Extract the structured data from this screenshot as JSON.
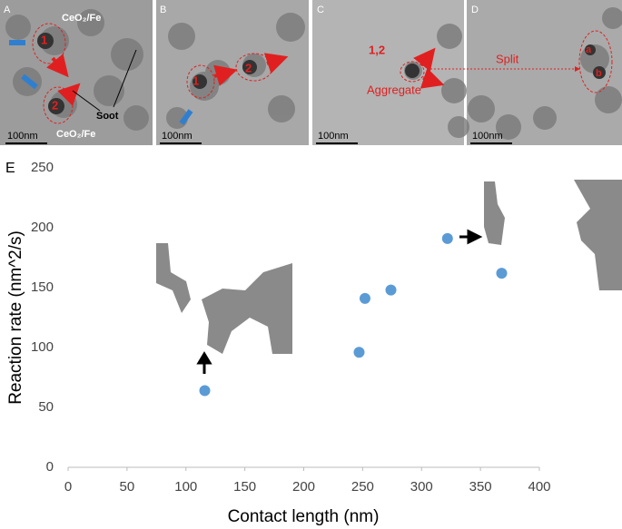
{
  "panels": [
    {
      "label": "A",
      "scale": "100nm",
      "texts": [
        "CeO₂/Fe",
        "1",
        "2",
        "Soot",
        "CeO₂/Fe"
      ]
    },
    {
      "label": "B",
      "scale": "100nm",
      "texts": [
        "1",
        "2"
      ]
    },
    {
      "label": "C",
      "scale": "100nm",
      "texts": [
        "1,2",
        "Aggregate"
      ]
    },
    {
      "label": "D",
      "scale": "100nm",
      "texts": [
        "Split",
        "a",
        "b"
      ]
    }
  ],
  "chart_data": {
    "type": "scatter",
    "panel_label": "E",
    "xlabel": "Contact length (nm)",
    "ylabel": "Reaction rate (nm^2/s)",
    "x": [
      116,
      247,
      252,
      274,
      322,
      368
    ],
    "values": [
      64,
      96,
      141,
      148,
      191,
      162
    ],
    "color": "#5b9bd5",
    "xlim": [
      0,
      400
    ],
    "ylim": [
      0,
      250
    ],
    "xticks": [
      0,
      50,
      100,
      150,
      200,
      250,
      300,
      350,
      400
    ],
    "yticks": [
      0,
      50,
      100,
      150,
      200,
      250
    ],
    "grid": false
  }
}
